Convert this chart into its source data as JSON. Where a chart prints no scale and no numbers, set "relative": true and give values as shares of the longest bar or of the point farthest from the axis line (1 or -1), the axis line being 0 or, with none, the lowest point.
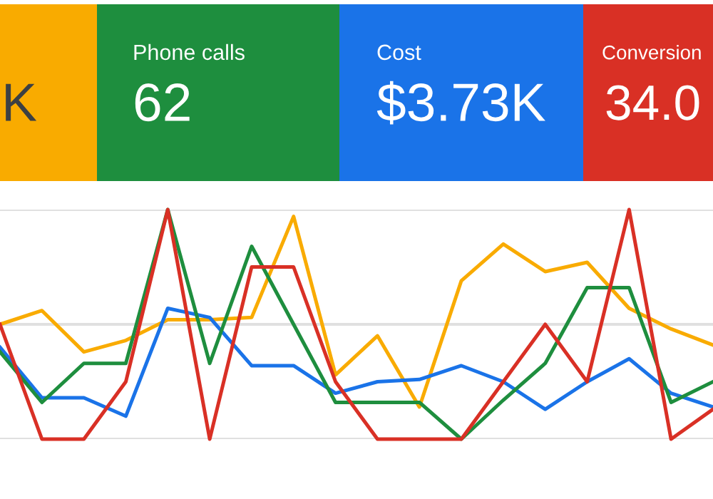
{
  "chart_data": [
    {
      "type": "other",
      "colors": [
        "#f9ab00",
        "#1e8e3e",
        "#1a73e8",
        "#d93025"
      ],
      "annotations": [
        "K",
        "Phone calls",
        "62",
        "Cost",
        "$3.73K",
        "Conversion",
        "34.0"
      ]
    },
    {
      "type": "line",
      "relative": true,
      "grid": "y",
      "marker": "none",
      "line_style": "solid",
      "ref_lines": [
        {
          "axis": "y",
          "value": 0.5,
          "label": null,
          "color": "#e0e0e0"
        }
      ],
      "categories": [
        null,
        null,
        null,
        null,
        null,
        null,
        null,
        null,
        null,
        null,
        null,
        null,
        null,
        null,
        null,
        null,
        null,
        null
      ],
      "series": [
        {
          "color": "#f9ab00",
          "values": [
            0.5,
            0.56,
            0.38,
            0.43,
            0.52,
            0.52,
            0.53,
            0.97,
            0.28,
            0.45,
            0.14,
            0.69,
            0.85,
            0.73,
            0.77,
            0.57,
            0.48,
            0.41
          ]
        },
        {
          "color": "#1a73e8",
          "values": [
            0.4,
            0.18,
            0.18,
            0.1,
            0.57,
            0.53,
            0.32,
            0.32,
            0.2,
            0.25,
            0.26,
            0.32,
            0.25,
            0.13,
            0.25,
            0.35,
            0.2,
            0.14
          ]
        },
        {
          "color": "#1e8e3e",
          "values": [
            0.38,
            0.16,
            0.33,
            0.33,
            1.0,
            0.33,
            0.84,
            0.5,
            0.16,
            0.16,
            0.16,
            0.0,
            0.17,
            0.33,
            0.66,
            0.66,
            0.16,
            0.25
          ]
        },
        {
          "color": "#d93025",
          "values": [
            0.5,
            0.0,
            0.0,
            0.25,
            1.0,
            0.0,
            0.75,
            0.75,
            0.25,
            0.0,
            0.0,
            0.0,
            0.25,
            0.5,
            0.25,
            1.0,
            0.0,
            0.13
          ]
        }
      ]
    }
  ]
}
